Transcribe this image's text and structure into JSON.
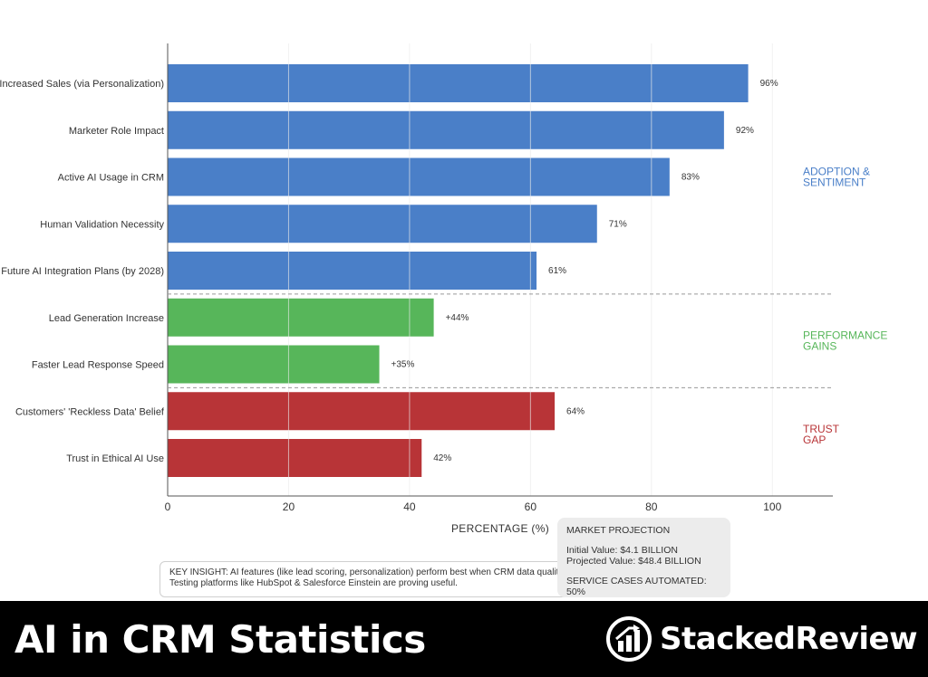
{
  "chart_data": {
    "type": "bar",
    "orientation": "horizontal",
    "xlabel": "PERCENTAGE (%)",
    "xlim": [
      0,
      110
    ],
    "xticks": [
      0,
      20,
      40,
      60,
      80,
      100
    ],
    "grid": true,
    "categories": [
      "Increased Sales (via Personalization)",
      "Marketer Role Impact",
      "Active AI Usage in CRM",
      "Human Validation Necessity",
      "Future AI Integration Plans (by 2028)",
      "Lead Generation Increase",
      "Faster Lead Response Speed",
      "Customers' 'Reckless Data' Belief",
      "Trust in Ethical AI Use"
    ],
    "values": [
      96,
      92,
      83,
      71,
      61,
      44,
      35,
      64,
      42
    ],
    "value_labels": [
      "96%",
      "92%",
      "83%",
      "71%",
      "61%",
      "+44%",
      "+35%",
      "64%",
      "42%"
    ],
    "groups": [
      {
        "name": "ADOPTION & SENTIMENT",
        "lines": [
          "ADOPTION &",
          "SENTIMENT"
        ],
        "color": "#4a7fc8",
        "count": 5
      },
      {
        "name": "PERFORMANCE GAINS",
        "lines": [
          "PERFORMANCE",
          "GAINS"
        ],
        "color": "#57b65a",
        "count": 2
      },
      {
        "name": "TRUST GAP",
        "lines": [
          "TRUST",
          "GAP"
        ],
        "color": "#b83437",
        "count": 2
      }
    ]
  },
  "insight": {
    "line1": "KEY INSIGHT: AI features (like lead scoring, personalization) perform best when CRM data quality is high.",
    "line2": "Testing platforms like HubSpot & Salesforce Einstein are proving useful."
  },
  "projection": {
    "title": "MARKET PROJECTION",
    "initial": "Initial Value: $4.1 BILLION",
    "projected": "Projected Value: $48.4 BILLION",
    "service": "SERVICE CASES AUTOMATED: 50%"
  },
  "footer": {
    "title": "AI in CRM Statistics",
    "brand": "StackedReview"
  }
}
